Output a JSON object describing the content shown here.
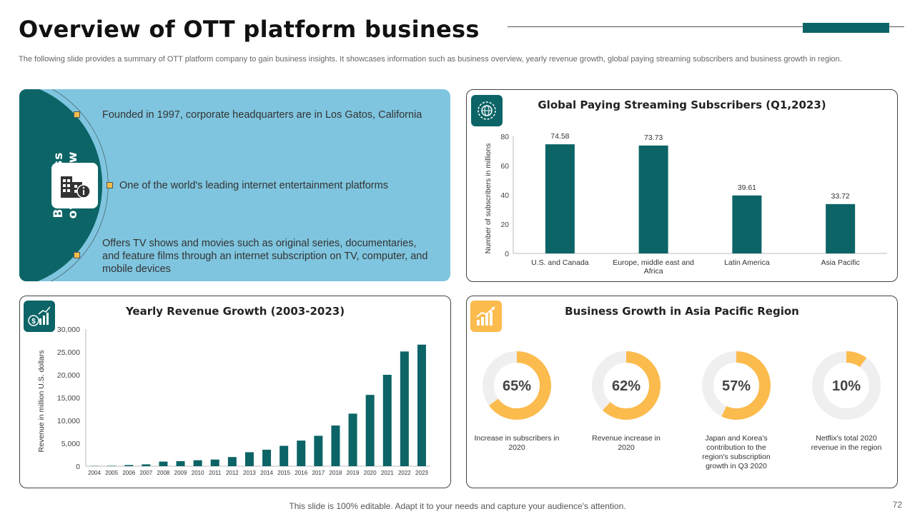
{
  "header": {
    "title": "Overview of OTT platform business",
    "subtitle": "The following slide provides a summary of OTT platform company to gain business insights. It showcases information such as business overview, yearly revenue growth, global paying streaming subscribers and business growth  in region."
  },
  "business_overview": {
    "label": "Business overview",
    "points": [
      "Founded in 1997, corporate headquarters are in Los Gatos, California",
      "One of the world's leading internet entertainment platforms",
      "Offers TV shows and movies such as original series, documentaries, and feature films through an internet subscription on TV, computer, and mobile devices"
    ]
  },
  "colors": {
    "teal": "#0c6466",
    "light_blue": "#7fc5df",
    "gold": "#fbbb4d",
    "gray_track": "#efefef"
  },
  "chart_data": [
    {
      "type": "bar",
      "title": "Global Paying Streaming Subscribers (Q1,2023)",
      "ylabel": "Number of subscribers in millions",
      "xlabel": "",
      "categories": [
        "U.S. and Canada",
        "Europe, middle east and Africa",
        "Latin America",
        "Asia Pacific"
      ],
      "values": [
        74.58,
        73.73,
        39.61,
        33.72
      ],
      "data_labels": [
        "74.58",
        "73.73",
        "39.61",
        "33.72"
      ],
      "ylim": [
        0,
        80
      ],
      "yticks": [
        0,
        20,
        40,
        60,
        80
      ],
      "grid": false
    },
    {
      "type": "bar",
      "title": "Yearly Revenue Growth (2003-2023)",
      "ylabel": "Revenue in million U.S. dollars",
      "xlabel": "",
      "categories": [
        "2004",
        "2005",
        "2006",
        "2007",
        "2008",
        "2009",
        "2010",
        "2011",
        "2012",
        "2013",
        "2014",
        "2015",
        "2016",
        "2017",
        "2018",
        "2019",
        "2020",
        "2021",
        "2022",
        "2023"
      ],
      "values": [
        50,
        80,
        250,
        400,
        1000,
        1100,
        1300,
        1450,
        2000,
        3050,
        3600,
        4450,
        5600,
        6650,
        8900,
        11500,
        15600,
        20000,
        25100,
        26600
      ],
      "ylim": [
        0,
        30000
      ],
      "yticks": [
        0,
        5000,
        10000,
        15000,
        20000,
        25000,
        30000
      ],
      "ytick_labels": [
        "0",
        "5,000",
        "10,000",
        "15,000",
        "20,000",
        "25,000",
        "30,000"
      ],
      "grid": false
    },
    {
      "type": "pie",
      "title": "Business Growth in Asia Pacific Region",
      "style": "donut",
      "items": [
        {
          "value": 65,
          "text": "65%",
          "label": "Increase in subscribers in 2020"
        },
        {
          "value": 62,
          "text": "62%",
          "label": "Revenue increase in 2020"
        },
        {
          "value": 57,
          "text": "57%",
          "label": "Japan and Korea's contribution to the region's subscription growth in Q3 2020"
        },
        {
          "value": 10,
          "text": "10%",
          "label": "Netflix's total 2020 revenue in the region"
        }
      ]
    }
  ],
  "footer": {
    "text": "This slide is 100% editable. Adapt it to your needs and capture your audience's attention.",
    "page": "72"
  }
}
